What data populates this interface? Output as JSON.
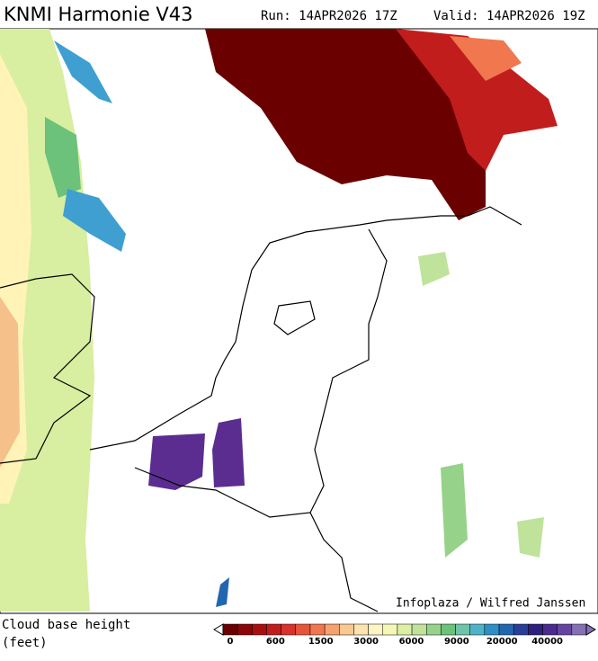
{
  "header": {
    "title": "KNMI Harmonie V43",
    "run": "Run: 14APR2026 17Z",
    "valid": "Valid: 14APR2026 19Z"
  },
  "map": {
    "credit": "Infoplaza / Wilfred Janssen"
  },
  "legend": {
    "title": "Cloud base height",
    "unit": "(feet)",
    "labels": [
      "0",
      "600",
      "1500",
      "3000",
      "6000",
      "9000",
      "20000",
      "40000"
    ],
    "colors": [
      "#6b0000",
      "#8b0606",
      "#a8100f",
      "#c21d1d",
      "#d8322a",
      "#e6553a",
      "#f0774e",
      "#f6a26e",
      "#fac992",
      "#fde3b2",
      "#fff5c2",
      "#f4f7b5",
      "#dcefa5",
      "#bfe39a",
      "#96d28a",
      "#6cc27a",
      "#6ec4a8",
      "#4fb3c8",
      "#2f8fc4",
      "#2366b0",
      "#283f98",
      "#2c1f7e",
      "#4b2a8e",
      "#66449e",
      "#8470b4"
    ]
  }
}
